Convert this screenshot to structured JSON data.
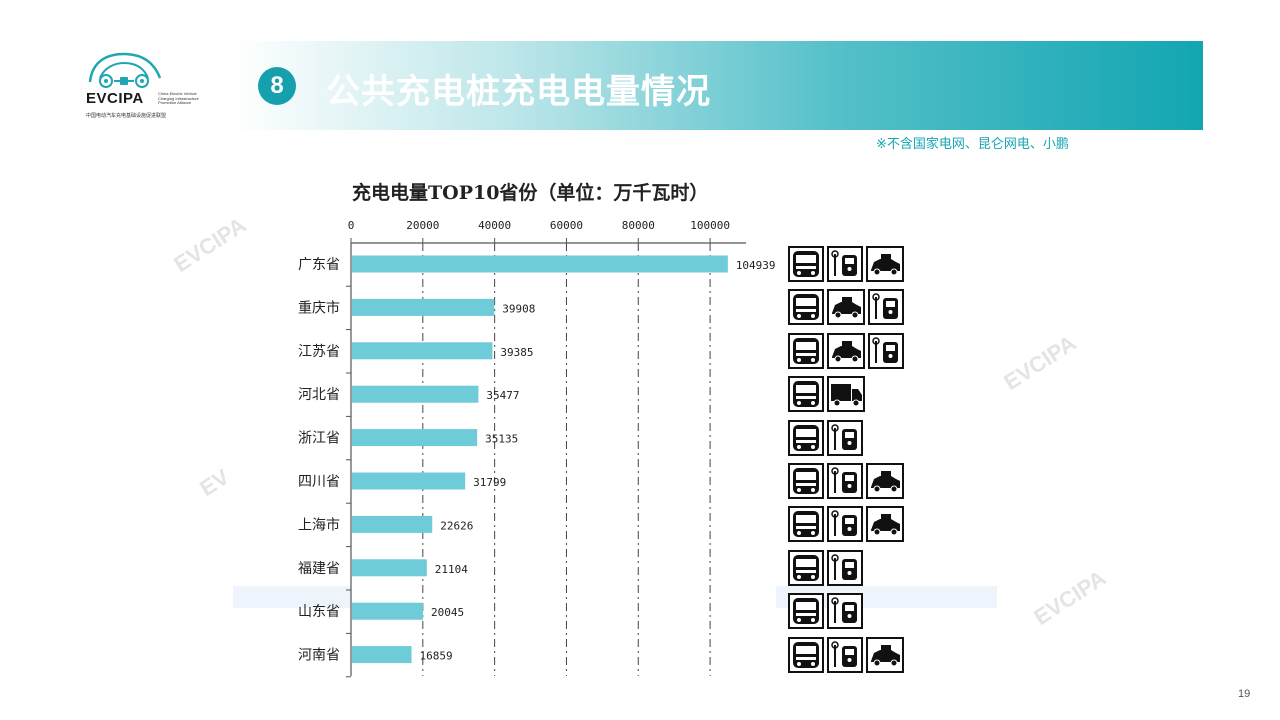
{
  "header": {
    "logo_word": "EVCIPA",
    "logo_tagline": [
      "China Electric Vehicle",
      "Charging Infrastructure",
      "Promotion Alliance"
    ],
    "logo_cn": "中国电动汽车充电基础设施促进联盟",
    "section_number": "8",
    "title": "公共充电桩充电电量情况",
    "note": "※不含国家电网、昆仑网电、小鹏"
  },
  "colors": {
    "accent": "#16a0ad",
    "bar": "#6ecbd8",
    "note": "#16a6b3"
  },
  "chart_data": {
    "type": "bar",
    "orientation": "horizontal",
    "title": "充电电量TOP10省份（单位：万千瓦时）",
    "categories": [
      "广东省",
      "重庆市",
      "江苏省",
      "河北省",
      "浙江省",
      "四川省",
      "上海市",
      "福建省",
      "山东省",
      "河南省"
    ],
    "values": [
      104939,
      39908,
      39385,
      35477,
      35135,
      31799,
      22626,
      21104,
      20045,
      16859
    ],
    "xlim": [
      0,
      110000
    ],
    "xticks": [
      0,
      20000,
      40000,
      60000,
      80000,
      100000
    ],
    "axis_position": "top",
    "grid": "vertical-dashed"
  },
  "vehicle_icons": [
    [
      "bus-icon",
      "charging-station-icon",
      "taxi-icon"
    ],
    [
      "bus-icon",
      "taxi-icon",
      "charging-station-icon"
    ],
    [
      "bus-icon",
      "taxi-icon",
      "charging-station-icon"
    ],
    [
      "bus-icon",
      "truck-icon"
    ],
    [
      "bus-icon",
      "charging-station-icon"
    ],
    [
      "bus-icon",
      "charging-station-icon",
      "taxi-icon"
    ],
    [
      "bus-icon",
      "charging-station-icon",
      "taxi-icon"
    ],
    [
      "bus-icon",
      "charging-station-icon"
    ],
    [
      "bus-icon",
      "charging-station-icon"
    ],
    [
      "bus-icon",
      "charging-station-icon",
      "taxi-icon"
    ]
  ],
  "page_number": "19"
}
